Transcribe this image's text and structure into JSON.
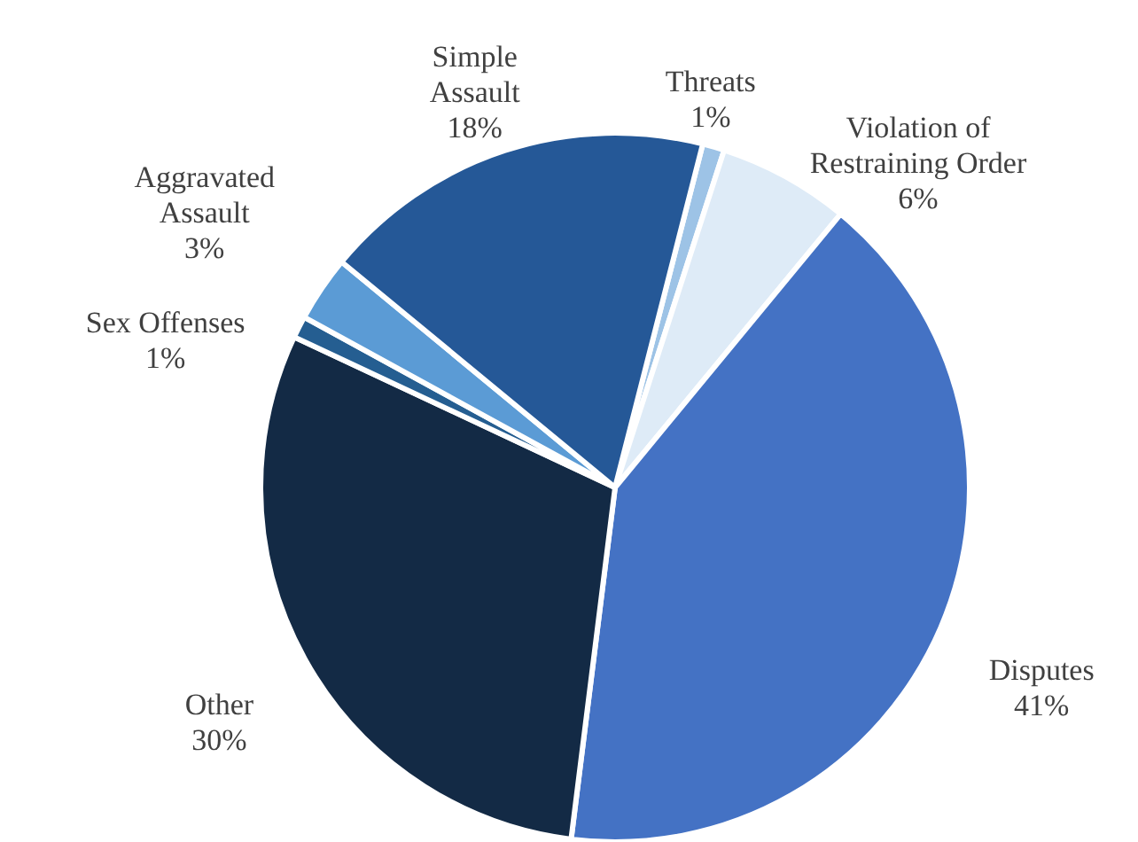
{
  "chart_data": {
    "type": "pie",
    "categories": [
      "Threats",
      "Violation of Restraining Order",
      "Disputes",
      "Other",
      "Sex Offenses",
      "Aggravated Assault",
      "Simple Assault"
    ],
    "values": [
      1,
      6,
      41,
      30,
      1,
      3,
      18
    ],
    "value_labels": [
      "1%",
      "6%",
      "41%",
      "30%",
      "1%",
      "3%",
      "18%"
    ],
    "colors": [
      "#9dc3e6",
      "#deebf7",
      "#4472c4",
      "#132a45",
      "#255e91",
      "#5b9bd5",
      "#255897"
    ]
  }
}
